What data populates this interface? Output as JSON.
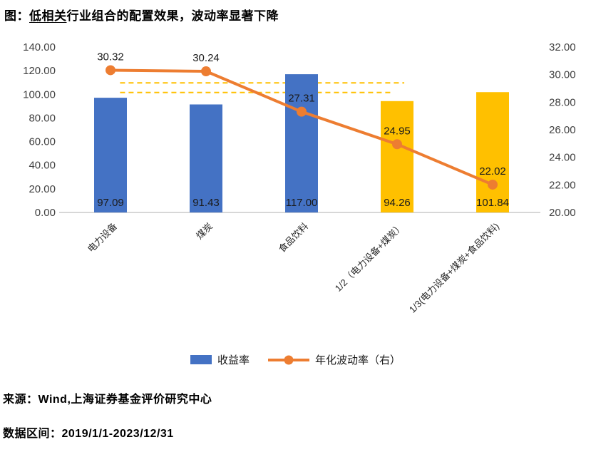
{
  "title": {
    "prefix": "图：",
    "underlined": "低相关",
    "rest": "行业组合的配置效果，波动率显著下降"
  },
  "colors": {
    "bar_blue": "#4472C4",
    "bar_gold": "#FFC000",
    "line_orange": "#ED7D31",
    "axis_line": "#BFBFBF",
    "reference_dash": "#FFC000"
  },
  "chart_data": {
    "type": "bar",
    "subtype": "bar+line combo, dual axis",
    "categories": [
      "电力设备",
      "煤炭",
      "食品饮料",
      "1/2（电力设备+煤炭）",
      "1/3(电力设备+煤炭+食品饮料)"
    ],
    "series": [
      {
        "name": "收益率",
        "type": "bar",
        "axis": "left",
        "values": [
          97.09,
          91.43,
          117.0,
          94.26,
          101.84
        ],
        "bar_colors": [
          "#4472C4",
          "#4472C4",
          "#4472C4",
          "#FFC000",
          "#FFC000"
        ],
        "data_labels": [
          "97.09",
          "91.43",
          "117.00",
          "94.26",
          "101.84"
        ]
      },
      {
        "name": "年化波动率（右）",
        "type": "line",
        "axis": "right",
        "values": [
          30.32,
          30.24,
          27.31,
          24.95,
          22.02
        ],
        "color": "#ED7D31",
        "data_labels": [
          "30.32",
          "30.24",
          "27.31",
          "24.95",
          "22.02"
        ]
      }
    ],
    "left_axis": {
      "min": 0,
      "max": 140,
      "step": 20,
      "tick_labels": [
        "0.00",
        "20.00",
        "40.00",
        "60.00",
        "80.00",
        "100.00",
        "120.00",
        "140.00"
      ]
    },
    "right_axis": {
      "min": 20,
      "max": 32,
      "step": 2,
      "tick_labels": [
        "20.00",
        "22.00",
        "24.00",
        "26.00",
        "28.00",
        "30.00",
        "32.00"
      ]
    },
    "reference_lines": [
      {
        "axis": "right",
        "value": 29.4,
        "x_start_frac": 0.12,
        "x_end_frac": 0.715,
        "style": "dashed"
      },
      {
        "axis": "right",
        "value": 28.7,
        "x_start_frac": 0.12,
        "x_end_frac": 0.69,
        "style": "dashed"
      }
    ],
    "grid": "off",
    "legend_position": "bottom"
  },
  "footer": {
    "source": "来源：Wind,上海证券基金评价研究中心",
    "range": "数据区间：2019/1/1-2023/12/31"
  }
}
